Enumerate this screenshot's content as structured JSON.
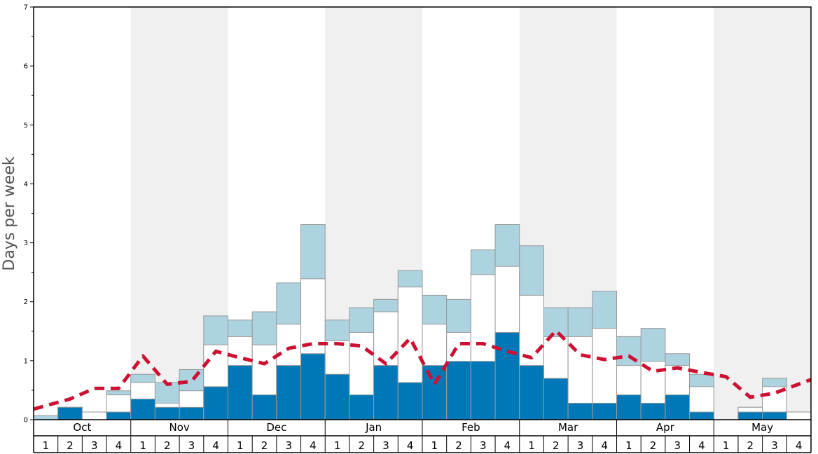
{
  "chart_data": {
    "type": "bar",
    "ylabel": "Days per week",
    "ylim": [
      0,
      7
    ],
    "yticks": [
      "0",
      "1",
      "2",
      "3",
      "4",
      "5",
      "6",
      "7"
    ],
    "months": [
      "Oct",
      "Nov",
      "Dec",
      "Jan",
      "Feb",
      "Mar",
      "Apr",
      "May"
    ],
    "weeks": [
      "1",
      "2",
      "3",
      "4"
    ],
    "series": [
      {
        "values": [
          0.0,
          0.21,
          0.0,
          0.13,
          0.35,
          0.21,
          0.21,
          0.56,
          0.92,
          0.42,
          0.92,
          1.12,
          0.77,
          0.42,
          0.92,
          0.63,
          0.92,
          0.99,
          0.99,
          1.48,
          0.92,
          0.7,
          0.28,
          0.28,
          0.42,
          0.28,
          0.42,
          0.13,
          0.0,
          0.13,
          0.13,
          0.0
        ]
      },
      {
        "values": [
          0.0,
          0.21,
          0.13,
          0.42,
          0.63,
          0.28,
          0.49,
          1.27,
          1.41,
          1.27,
          1.62,
          2.39,
          1.34,
          1.48,
          1.83,
          2.25,
          1.62,
          1.48,
          2.46,
          2.6,
          2.11,
          1.41,
          1.41,
          1.55,
          0.92,
          0.99,
          0.92,
          0.56,
          0.0,
          0.21,
          0.56,
          0.13
        ]
      },
      {
        "values": [
          0.07,
          0.21,
          0.13,
          0.49,
          0.77,
          0.63,
          0.85,
          1.76,
          1.69,
          1.83,
          2.32,
          3.31,
          1.69,
          1.9,
          2.04,
          2.53,
          2.11,
          2.04,
          2.88,
          3.31,
          2.95,
          1.9,
          1.9,
          2.18,
          1.41,
          1.55,
          1.12,
          0.77,
          0.0,
          0.21,
          0.7,
          0.13
        ]
      },
      {
        "values": [
          0.18,
          0.35,
          0.53,
          0.53,
          1.08,
          0.6,
          0.65,
          1.16,
          1.05,
          0.95,
          1.21,
          1.29,
          1.29,
          1.25,
          0.95,
          1.38,
          0.6,
          1.29,
          1.29,
          1.16,
          1.05,
          1.51,
          1.1,
          1.02,
          1.08,
          0.82,
          0.88,
          0.8,
          0.73,
          0.38,
          0.45,
          0.68
        ]
      }
    ],
    "colors": {
      "shade_band": "#f0f0f0",
      "series_0": "#0077b6",
      "series_1": "#ffffff",
      "series_2": "#add3e0",
      "bar_stroke": "#999999",
      "series_3": "#cc1133",
      "axis": "#000000"
    },
    "grid": false,
    "legend": "none"
  }
}
